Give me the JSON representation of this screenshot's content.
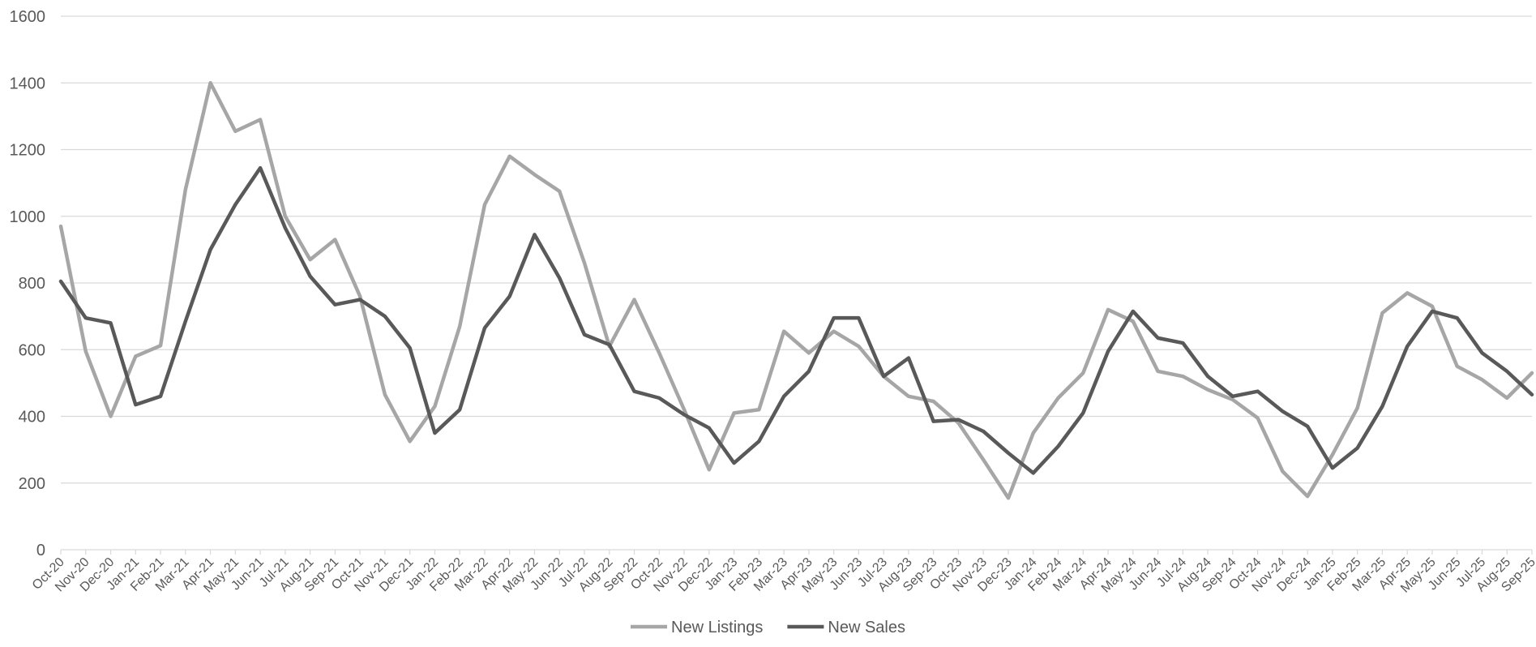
{
  "chart_data": {
    "type": "line",
    "title": "",
    "xlabel": "",
    "ylabel": "",
    "ylim": [
      0,
      1600
    ],
    "yticks": [
      0,
      200,
      400,
      600,
      800,
      1000,
      1200,
      1400,
      1600
    ],
    "grid": true,
    "legend_position": "bottom",
    "categories": [
      "Oct-20",
      "Nov-20",
      "Dec-20",
      "Jan-21",
      "Feb-21",
      "Mar-21",
      "Apr-21",
      "May-21",
      "Jun-21",
      "Jul-21",
      "Aug-21",
      "Sep-21",
      "Oct-21",
      "Nov-21",
      "Dec-21",
      "Jan-22",
      "Feb-22",
      "Mar-22",
      "Apr-22",
      "May-22",
      "Jun-22",
      "Jul-22",
      "Aug-22",
      "Sep-22",
      "Oct-22",
      "Nov-22",
      "Dec-22",
      "Jan-23",
      "Feb-23",
      "Mar-23",
      "Apr-23",
      "May-23",
      "Jun-23",
      "Jul-23",
      "Aug-23",
      "Sep-23",
      "Oct-23",
      "Nov-23",
      "Dec-23",
      "Jan-24",
      "Feb-24",
      "Mar-24",
      "Apr-24",
      "May-24",
      "Jun-24",
      "Jul-24",
      "Aug-24",
      "Sep-24",
      "Oct-24",
      "Nov-24",
      "Dec-24",
      "Jan-25",
      "Feb-25",
      "Mar-25",
      "Apr-25",
      "May-25",
      "Jun-25",
      "Jul-25",
      "Aug-25",
      "Sep-25"
    ],
    "series": [
      {
        "name": "New Listings",
        "color": "#a6a6a6",
        "values": [
          970,
          595,
          400,
          580,
          612,
          1080,
          1400,
          1255,
          1290,
          1000,
          870,
          930,
          760,
          465,
          325,
          430,
          670,
          1035,
          1180,
          1125,
          1075,
          860,
          610,
          750,
          590,
          420,
          240,
          410,
          420,
          655,
          590,
          655,
          610,
          520,
          460,
          445,
          380,
          270,
          155,
          350,
          455,
          530,
          720,
          685,
          535,
          520,
          480,
          450,
          395,
          235,
          160,
          285,
          425,
          710,
          770,
          730,
          550,
          510,
          455,
          530
        ]
      },
      {
        "name": "New Sales",
        "color": "#595959",
        "values": [
          805,
          695,
          680,
          435,
          460,
          685,
          900,
          1035,
          1145,
          965,
          820,
          735,
          750,
          700,
          605,
          350,
          420,
          665,
          760,
          945,
          815,
          645,
          615,
          475,
          455,
          405,
          365,
          260,
          325,
          460,
          535,
          695,
          695,
          520,
          575,
          385,
          390,
          355,
          290,
          230,
          310,
          410,
          595,
          715,
          635,
          620,
          520,
          460,
          475,
          415,
          370,
          245,
          305,
          430,
          610,
          715,
          695,
          590,
          535,
          465
        ]
      }
    ]
  }
}
